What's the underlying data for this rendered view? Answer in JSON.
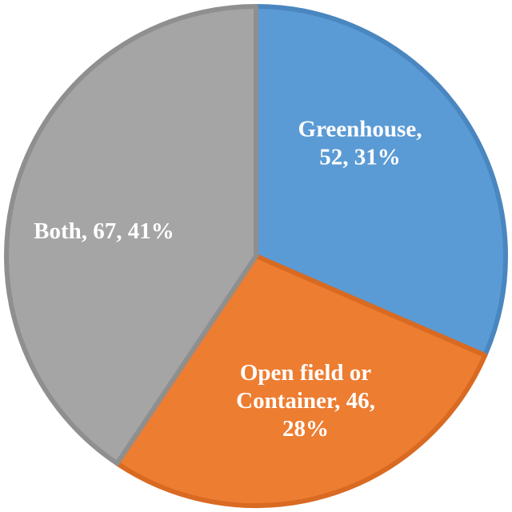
{
  "chart_data": {
    "type": "pie",
    "title": "",
    "slices": [
      {
        "category": "Greenhouse",
        "value": 52,
        "percent": "31%",
        "label_lines": [
          "Greenhouse,",
          "52, 31%"
        ],
        "color": "#5b9bd5",
        "border": "#4a86c0"
      },
      {
        "category": "Open field or Container",
        "value": 46,
        "percent": "28%",
        "label_lines": [
          "Open field or",
          "Container, 46,",
          "28%"
        ],
        "color": "#ed7d31",
        "border": "#d96a22"
      },
      {
        "category": "Both",
        "value": 67,
        "percent": "41%",
        "label_lines": [
          "Both, 67, 41%"
        ],
        "color": "#a5a5a5",
        "border": "#8f8f8f"
      }
    ],
    "legend": "none",
    "start_angle_deg": 0,
    "direction": "clockwise"
  }
}
